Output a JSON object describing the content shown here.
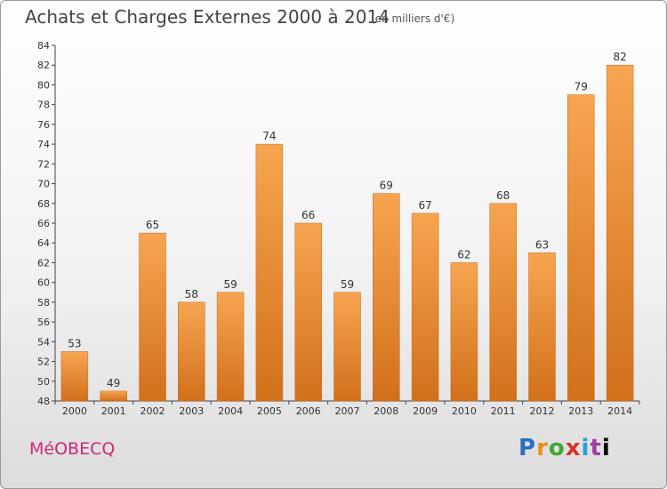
{
  "header": {
    "title": "Achats et Charges Externes 2000 à 2014",
    "subtitle": "(en milliers d'€)"
  },
  "footer": {
    "city": "MéOBECQ",
    "logo": "Proxiti",
    "logo_colors": [
      "#2b6fc1",
      "#e8901c",
      "#43a535",
      "#d6342b",
      "#2b9fd3",
      "#9c3fa3"
    ]
  },
  "chart_data": {
    "type": "bar",
    "title": "Achats et Charges Externes 2000 à 2014",
    "subtitle": "(en milliers d'€)",
    "xlabel": "",
    "ylabel": "",
    "categories": [
      "2000",
      "2001",
      "2002",
      "2003",
      "2004",
      "2005",
      "2006",
      "2007",
      "2008",
      "2009",
      "2010",
      "2011",
      "2012",
      "2013",
      "2014"
    ],
    "values": [
      53,
      49,
      65,
      58,
      59,
      74,
      66,
      59,
      69,
      67,
      62,
      68,
      63,
      79,
      82
    ],
    "ylim": [
      48,
      84
    ],
    "yticks": [
      48,
      50,
      52,
      54,
      56,
      58,
      60,
      62,
      64,
      66,
      68,
      70,
      72,
      74,
      76,
      78,
      80,
      82,
      84
    ],
    "grid": false,
    "bar_color_top": "#f7a552",
    "bar_color_bottom": "#d2701a"
  }
}
